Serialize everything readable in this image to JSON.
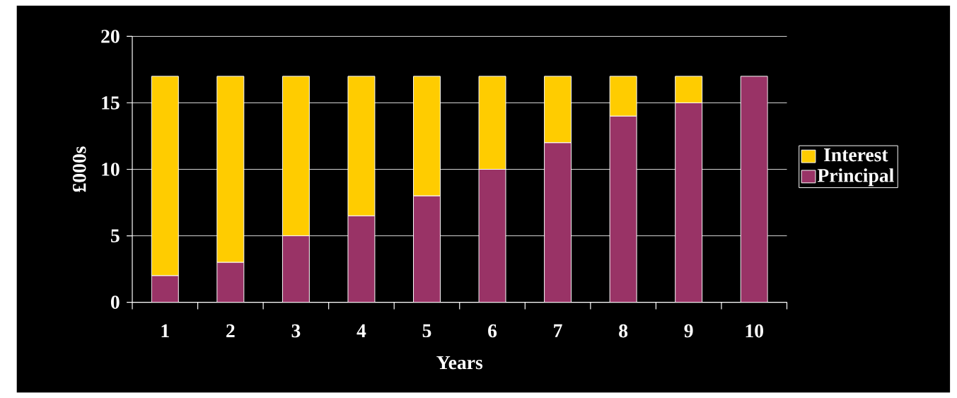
{
  "chart_data": {
    "type": "bar",
    "stacked": true,
    "xlabel": "Years",
    "ylabel": "£000s",
    "categories": [
      "1",
      "2",
      "3",
      "4",
      "5",
      "6",
      "7",
      "8",
      "9",
      "10"
    ],
    "series": [
      {
        "name": "Principal",
        "color": "#993366",
        "values": [
          2,
          3,
          5,
          6.5,
          8,
          10,
          12,
          14,
          15,
          17
        ]
      },
      {
        "name": "Interest",
        "color": "#ffcc00",
        "values": [
          15,
          14,
          12,
          10.5,
          9,
          7,
          5,
          3,
          2,
          0
        ]
      }
    ],
    "ylim": [
      0,
      20
    ],
    "yticks": [
      0,
      5,
      10,
      15,
      20
    ],
    "grid": "y",
    "legend": "right"
  }
}
